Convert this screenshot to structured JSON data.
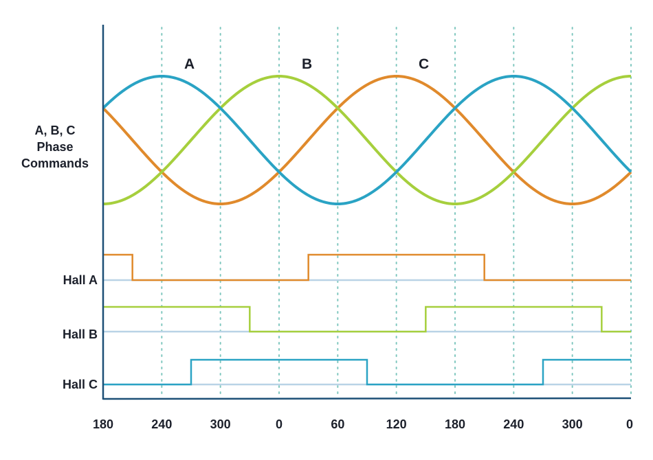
{
  "labels": {
    "phase_line1": "A, B, C",
    "phase_line2": "Phase",
    "phase_line3": "Commands",
    "hall_a": "Hall A",
    "hall_b": "Hall B",
    "hall_c": "Hall C",
    "curve_a": "A",
    "curve_b": "B",
    "curve_c": "C"
  },
  "x_ticks": [
    "180",
    "240",
    "300",
    "0",
    "60",
    "120",
    "180",
    "240",
    "300",
    "0"
  ],
  "colors": {
    "phase_a": "#e08a2c",
    "phase_b": "#a6cf3d",
    "phase_c": "#2aa3c4",
    "axis": "#1c4f76",
    "baseline": "#b9d3e6",
    "grid": "#7fc7bf"
  },
  "electrical_degrees_span": 540,
  "phases": [
    {
      "name": "A",
      "phase_offset_deg": 0
    },
    {
      "name": "B",
      "phase_offset_deg": 120
    },
    {
      "name": "C",
      "phase_offset_deg": 240
    }
  ],
  "hall_signals": [
    {
      "name": "Hall A",
      "initial_level": 1,
      "transitions_deg": [
        30,
        210,
        390
      ]
    },
    {
      "name": "Hall B",
      "initial_level": 1,
      "transitions_deg": [
        150,
        330,
        510
      ]
    },
    {
      "name": "Hall C",
      "initial_level": 0,
      "transitions_deg": [
        90,
        270,
        450
      ]
    }
  ]
}
